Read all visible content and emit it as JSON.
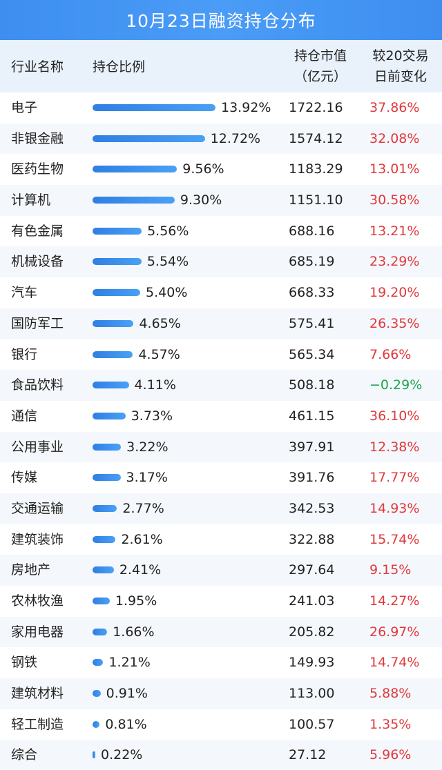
{
  "title": "10月23日融资持仓分布",
  "columns": {
    "industry": "行业名称",
    "ratio": "持仓比例",
    "value_line1": "持仓市值",
    "value_line2": "（亿元）",
    "change_line1": "较20交易",
    "change_line2": "日前变化"
  },
  "chart_data": {
    "type": "table",
    "title": "10月23日融资持仓分布",
    "columns": [
      "行业名称",
      "持仓比例",
      "持仓市值（亿元）",
      "较20交易日前变化"
    ],
    "rows": [
      {
        "industry": "电子",
        "ratio": 13.92,
        "ratio_label": "13.92%",
        "value": "1722.16",
        "change": 37.86,
        "change_label": "37.86%"
      },
      {
        "industry": "非银金融",
        "ratio": 12.72,
        "ratio_label": "12.72%",
        "value": "1574.12",
        "change": 32.08,
        "change_label": "32.08%"
      },
      {
        "industry": "医药生物",
        "ratio": 9.56,
        "ratio_label": "9.56%",
        "value": "1183.29",
        "change": 13.01,
        "change_label": "13.01%"
      },
      {
        "industry": "计算机",
        "ratio": 9.3,
        "ratio_label": "9.30%",
        "value": "1151.10",
        "change": 30.58,
        "change_label": "30.58%"
      },
      {
        "industry": "有色金属",
        "ratio": 5.56,
        "ratio_label": "5.56%",
        "value": "688.16",
        "change": 13.21,
        "change_label": "13.21%"
      },
      {
        "industry": "机械设备",
        "ratio": 5.54,
        "ratio_label": "5.54%",
        "value": "685.19",
        "change": 23.29,
        "change_label": "23.29%"
      },
      {
        "industry": "汽车",
        "ratio": 5.4,
        "ratio_label": "5.40%",
        "value": "668.33",
        "change": 19.2,
        "change_label": "19.20%"
      },
      {
        "industry": "国防军工",
        "ratio": 4.65,
        "ratio_label": "4.65%",
        "value": "575.41",
        "change": 26.35,
        "change_label": "26.35%"
      },
      {
        "industry": "银行",
        "ratio": 4.57,
        "ratio_label": "4.57%",
        "value": "565.34",
        "change": 7.66,
        "change_label": "7.66%"
      },
      {
        "industry": "食品饮料",
        "ratio": 4.11,
        "ratio_label": "4.11%",
        "value": "508.18",
        "change": -0.29,
        "change_label": "−0.29%"
      },
      {
        "industry": "通信",
        "ratio": 3.73,
        "ratio_label": "3.73%",
        "value": "461.15",
        "change": 36.1,
        "change_label": "36.10%"
      },
      {
        "industry": "公用事业",
        "ratio": 3.22,
        "ratio_label": "3.22%",
        "value": "397.91",
        "change": 12.38,
        "change_label": "12.38%"
      },
      {
        "industry": "传媒",
        "ratio": 3.17,
        "ratio_label": "3.17%",
        "value": "391.76",
        "change": 17.77,
        "change_label": "17.77%"
      },
      {
        "industry": "交通运输",
        "ratio": 2.77,
        "ratio_label": "2.77%",
        "value": "342.53",
        "change": 14.93,
        "change_label": "14.93%"
      },
      {
        "industry": "建筑装饰",
        "ratio": 2.61,
        "ratio_label": "2.61%",
        "value": "322.88",
        "change": 15.74,
        "change_label": "15.74%"
      },
      {
        "industry": "房地产",
        "ratio": 2.41,
        "ratio_label": "2.41%",
        "value": "297.64",
        "change": 9.15,
        "change_label": "9.15%"
      },
      {
        "industry": "农林牧渔",
        "ratio": 1.95,
        "ratio_label": "1.95%",
        "value": "241.03",
        "change": 14.27,
        "change_label": "14.27%"
      },
      {
        "industry": "家用电器",
        "ratio": 1.66,
        "ratio_label": "1.66%",
        "value": "205.82",
        "change": 26.97,
        "change_label": "26.97%"
      },
      {
        "industry": "钢铁",
        "ratio": 1.21,
        "ratio_label": "1.21%",
        "value": "149.93",
        "change": 14.74,
        "change_label": "14.74%"
      },
      {
        "industry": "建筑材料",
        "ratio": 0.91,
        "ratio_label": "0.91%",
        "value": "113.00",
        "change": 5.88,
        "change_label": "5.88%"
      },
      {
        "industry": "轻工制造",
        "ratio": 0.81,
        "ratio_label": "0.81%",
        "value": "100.57",
        "change": 1.35,
        "change_label": "1.35%"
      },
      {
        "industry": "综合",
        "ratio": 0.22,
        "ratio_label": "0.22%",
        "value": "27.12",
        "change": 5.96,
        "change_label": "5.96%"
      }
    ]
  },
  "colors": {
    "header_bar": "#3d8ef0",
    "header_row": "#e9f1fb",
    "bar": "#3a8ff0",
    "positive": "#e0393c",
    "negative": "#1fa44a"
  }
}
